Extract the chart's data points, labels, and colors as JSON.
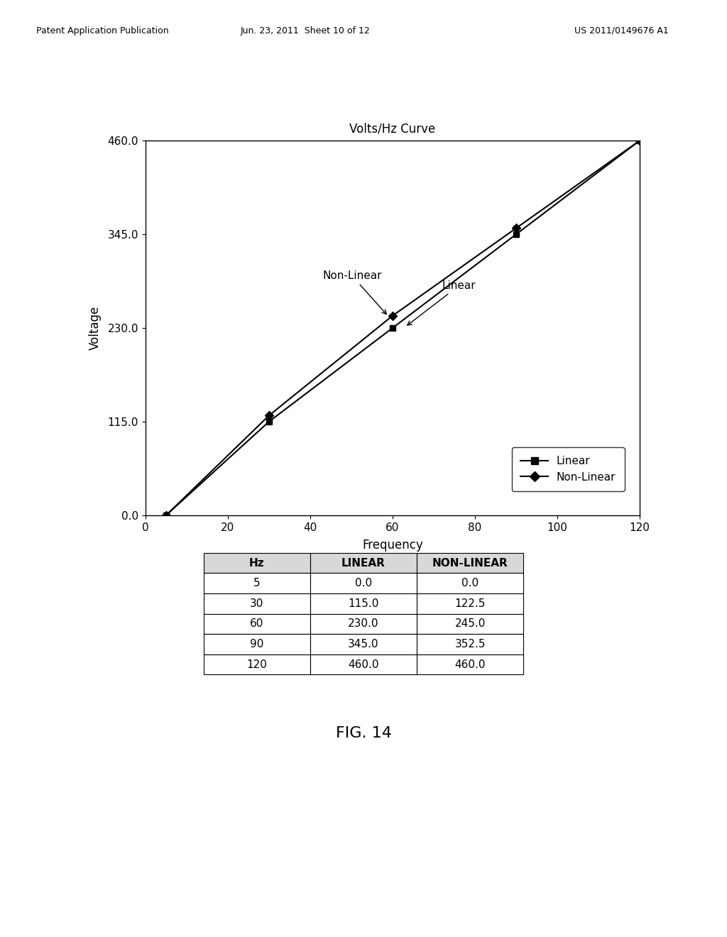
{
  "title": "Volts/Hz Curve",
  "xlabel": "Frequency",
  "ylabel": "Voltage",
  "xlim": [
    0,
    120
  ],
  "ylim": [
    0,
    460
  ],
  "xticks": [
    0,
    20,
    40,
    60,
    80,
    100,
    120
  ],
  "yticks": [
    0.0,
    115.0,
    230.0,
    345.0,
    460.0
  ],
  "ytick_labels": [
    "0.0",
    "115.0",
    "230.0",
    "345.0",
    "460.0"
  ],
  "linear_x": [
    5,
    30,
    60,
    90,
    120
  ],
  "linear_y": [
    0.0,
    115.0,
    230.0,
    345.0,
    460.0
  ],
  "nonlinear_x": [
    5,
    30,
    60,
    90,
    120
  ],
  "nonlinear_y": [
    0.0,
    122.5,
    245.0,
    352.5,
    460.0
  ],
  "line_color": "#000000",
  "marker_linear": "s",
  "marker_nonlinear": "D",
  "legend_linear": "Linear",
  "legend_nonlinear": "Non-Linear",
  "annotation_nonlinear": "Non-Linear",
  "annotation_linear": "Linear",
  "table_headers": [
    "Hz",
    "LINEAR",
    "NON-LINEAR"
  ],
  "table_data": [
    [
      "5",
      "0.0",
      "0.0"
    ],
    [
      "30",
      "115.0",
      "122.5"
    ],
    [
      "60",
      "230.0",
      "245.0"
    ],
    [
      "90",
      "345.0",
      "352.5"
    ],
    [
      "120",
      "460.0",
      "460.0"
    ]
  ],
  "fig_caption": "FIG. 14",
  "header_text_left": "Patent Application Publication",
  "header_text_mid": "Jun. 23, 2011  Sheet 10 of 12",
  "header_text_right": "US 2011/0149676 A1",
  "background_color": "#ffffff",
  "text_color": "#000000",
  "font_size": 11,
  "title_font_size": 12
}
